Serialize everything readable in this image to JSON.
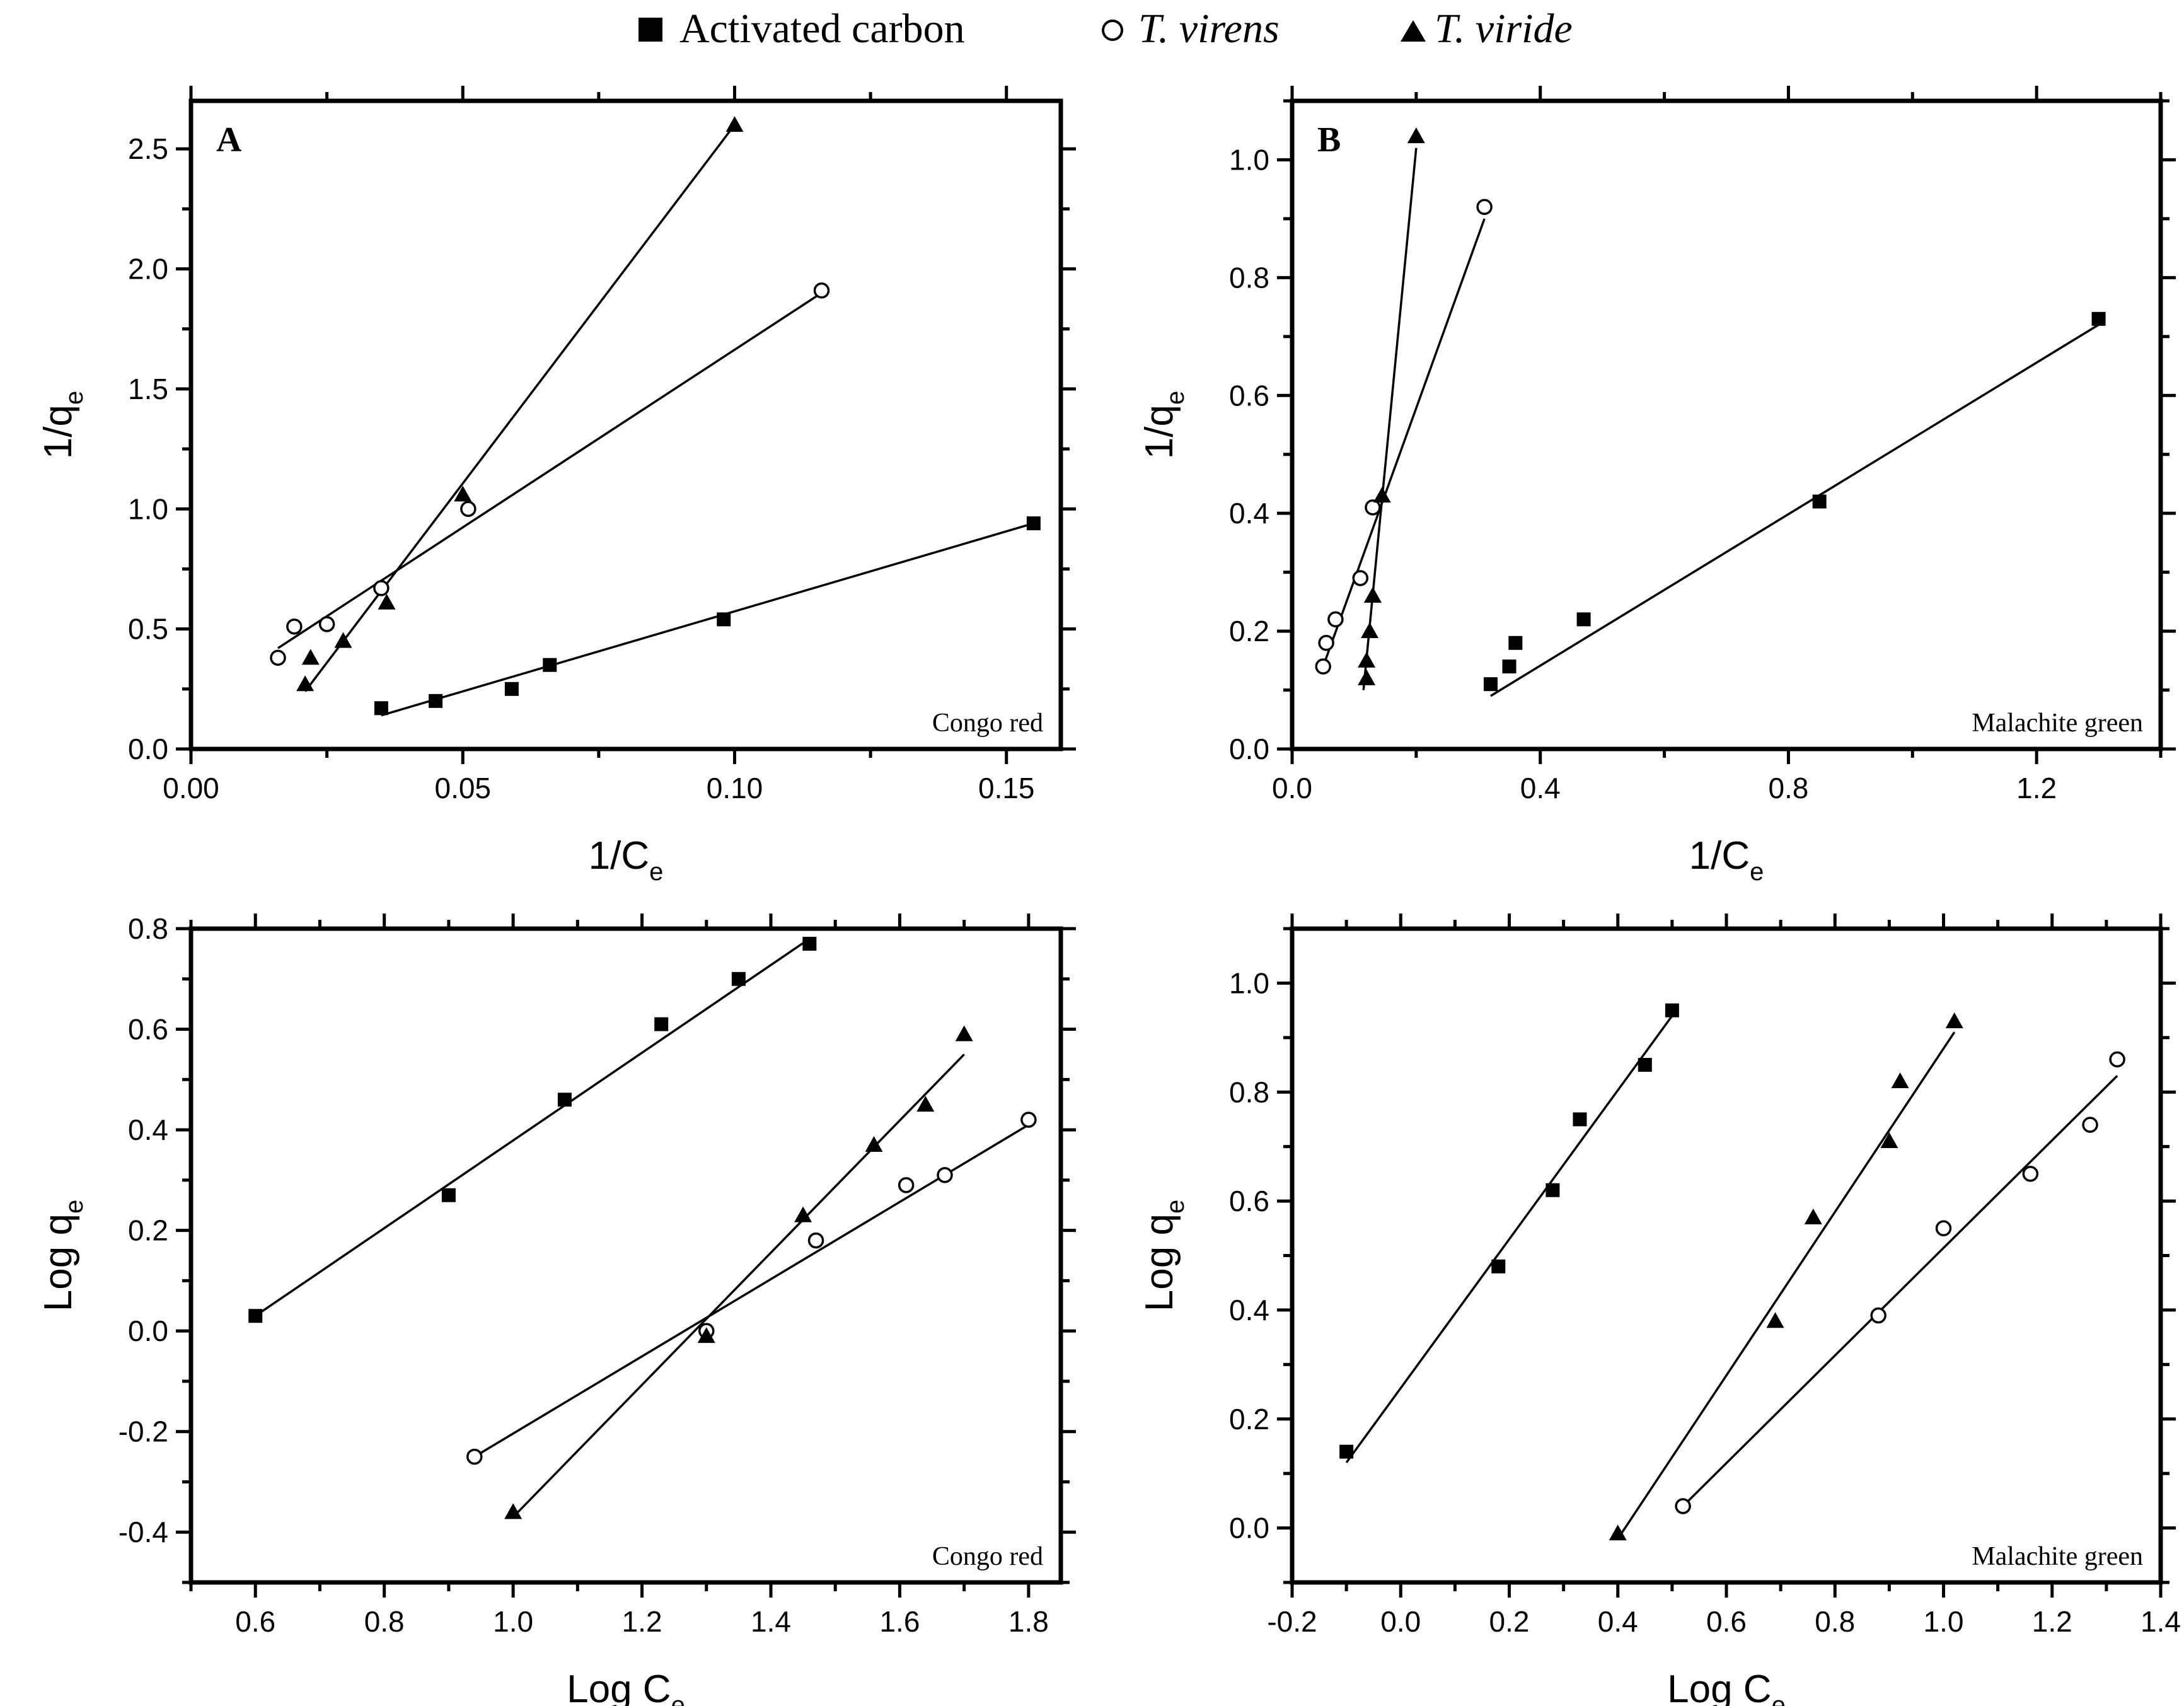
{
  "legend": {
    "entries": [
      {
        "name": "Activated carbon",
        "marker": "square",
        "italic": false
      },
      {
        "name": "T. virens",
        "marker": "circle",
        "italic": true
      },
      {
        "name": "T. viride",
        "marker": "triangle",
        "italic": true
      }
    ]
  },
  "colors": {
    "ink": "#000000",
    "background": "#ffffff"
  },
  "chart_data": [
    {
      "id": "A",
      "type": "scatter",
      "panel_label": "A",
      "annotation": "Congo red",
      "xlabel": {
        "main": "1/C",
        "sub": "e"
      },
      "ylabel": {
        "main": "1/q",
        "sub": "e"
      },
      "xlim": [
        0.0,
        0.16
      ],
      "ylim": [
        0.0,
        2.7
      ],
      "xticks": [
        0.0,
        0.05,
        0.1,
        0.15
      ],
      "xtick_labels": [
        "0.00",
        "0.05",
        "0.10",
        "0.15"
      ],
      "yticks": [
        0.0,
        0.5,
        1.0,
        1.5,
        2.0,
        2.5
      ],
      "ytick_labels": [
        "0.0",
        "0.5",
        "1.0",
        "1.5",
        "2.0",
        "2.5"
      ],
      "series": [
        {
          "name": "Activated carbon",
          "marker": "square",
          "x": [
            0.035,
            0.045,
            0.059,
            0.066,
            0.098,
            0.155
          ],
          "y": [
            0.17,
            0.2,
            0.25,
            0.35,
            0.54,
            0.94
          ],
          "fit": {
            "x": [
              0.035,
              0.155
            ],
            "y": [
              0.14,
              0.94
            ]
          }
        },
        {
          "name": "T. virens",
          "marker": "circle",
          "x": [
            0.016,
            0.019,
            0.025,
            0.035,
            0.051,
            0.116
          ],
          "y": [
            0.38,
            0.51,
            0.52,
            0.67,
            1.0,
            1.91
          ],
          "fit": {
            "x": [
              0.016,
              0.116
            ],
            "y": [
              0.42,
              1.9
            ]
          }
        },
        {
          "name": "T. viride",
          "marker": "triangle",
          "x": [
            0.021,
            0.022,
            0.028,
            0.036,
            0.05,
            0.1
          ],
          "y": [
            0.27,
            0.38,
            0.45,
            0.61,
            1.06,
            2.6
          ],
          "fit": {
            "x": [
              0.021,
              0.1
            ],
            "y": [
              0.24,
              2.6
            ]
          }
        }
      ]
    },
    {
      "id": "B",
      "type": "scatter",
      "panel_label": "B",
      "annotation": "Malachite green",
      "xlabel": {
        "main": "1/C",
        "sub": "e"
      },
      "ylabel": {
        "main": "1/q",
        "sub": "e"
      },
      "xlim": [
        0.0,
        1.4
      ],
      "ylim": [
        0.0,
        1.1
      ],
      "xticks": [
        0.0,
        0.4,
        0.8,
        1.2
      ],
      "xtick_labels": [
        "0.0",
        "0.4",
        "0.8",
        "1.2"
      ],
      "yticks": [
        0.0,
        0.2,
        0.4,
        0.6,
        0.8,
        1.0
      ],
      "ytick_labels": [
        "0.0",
        "0.2",
        "0.4",
        "0.6",
        "0.8",
        "1.0"
      ],
      "series": [
        {
          "name": "Activated carbon",
          "marker": "square",
          "x": [
            0.32,
            0.35,
            0.36,
            0.47,
            0.85,
            1.3
          ],
          "y": [
            0.11,
            0.14,
            0.18,
            0.22,
            0.42,
            0.73
          ],
          "fit": {
            "x": [
              0.32,
              1.3
            ],
            "y": [
              0.09,
              0.72
            ]
          }
        },
        {
          "name": "T. virens",
          "marker": "circle",
          "x": [
            0.05,
            0.055,
            0.07,
            0.11,
            0.13,
            0.31
          ],
          "y": [
            0.14,
            0.18,
            0.22,
            0.29,
            0.41,
            0.92
          ],
          "fit": {
            "x": [
              0.05,
              0.31
            ],
            "y": [
              0.14,
              0.9
            ]
          }
        },
        {
          "name": "T. viride",
          "marker": "triangle",
          "x": [
            0.12,
            0.12,
            0.125,
            0.13,
            0.13,
            0.145,
            0.2
          ],
          "y": [
            0.12,
            0.15,
            0.2,
            0.26,
            0.26,
            0.43,
            1.04
          ],
          "fit": {
            "x": [
              0.115,
              0.2
            ],
            "y": [
              0.1,
              1.02
            ]
          }
        }
      ]
    },
    {
      "id": "C",
      "type": "scatter",
      "panel_label": "",
      "annotation": "Congo red",
      "xlabel": {
        "main": "Log C",
        "sub": "e"
      },
      "ylabel": {
        "main": "Log q",
        "sub": "e"
      },
      "xlim": [
        0.5,
        1.85
      ],
      "ylim": [
        -0.5,
        0.8
      ],
      "xticks": [
        0.6,
        0.8,
        1.0,
        1.2,
        1.4,
        1.6,
        1.8
      ],
      "xtick_labels": [
        "0.6",
        "0.8",
        "1.0",
        "1.2",
        "1.4",
        "1.6",
        "1.8"
      ],
      "yticks": [
        -0.4,
        -0.2,
        0.0,
        0.2,
        0.4,
        0.6,
        0.8
      ],
      "ytick_labels": [
        "-0.4",
        "-0.2",
        "0.0",
        "0.2",
        "0.4",
        "0.6",
        "0.8"
      ],
      "series": [
        {
          "name": "Activated carbon",
          "marker": "square",
          "x": [
            0.6,
            0.9,
            1.08,
            1.23,
            1.35,
            1.46
          ],
          "y": [
            0.03,
            0.27,
            0.46,
            0.61,
            0.7,
            0.77
          ],
          "fit": {
            "x": [
              0.6,
              1.46
            ],
            "y": [
              0.03,
              0.78
            ]
          }
        },
        {
          "name": "T. virens",
          "marker": "circle",
          "x": [
            0.94,
            1.3,
            1.47,
            1.61,
            1.67,
            1.8
          ],
          "y": [
            -0.25,
            0.0,
            0.18,
            0.29,
            0.31,
            0.42
          ],
          "fit": {
            "x": [
              0.94,
              1.8
            ],
            "y": [
              -0.25,
              0.41
            ]
          }
        },
        {
          "name": "T. viride",
          "marker": "triangle",
          "x": [
            1.0,
            1.3,
            1.45,
            1.56,
            1.64,
            1.7
          ],
          "y": [
            -0.36,
            -0.01,
            0.23,
            0.37,
            0.45,
            0.59
          ],
          "fit": {
            "x": [
              1.0,
              1.7
            ],
            "y": [
              -0.37,
              0.55
            ]
          }
        }
      ]
    },
    {
      "id": "D",
      "type": "scatter",
      "panel_label": "",
      "annotation": "Malachite green",
      "xlabel": {
        "main": "Log C",
        "sub": "e"
      },
      "ylabel": {
        "main": "Log q",
        "sub": "e"
      },
      "xlim": [
        -0.2,
        1.4
      ],
      "ylim": [
        -0.1,
        1.1
      ],
      "xticks": [
        -0.2,
        0.0,
        0.2,
        0.4,
        0.6,
        0.8,
        1.0,
        1.2,
        1.4
      ],
      "xtick_labels": [
        "-0.2",
        "0.0",
        "0.2",
        "0.4",
        "0.6",
        "0.8",
        "1.0",
        "1.2",
        "1.4"
      ],
      "yticks": [
        0.0,
        0.2,
        0.4,
        0.6,
        0.8,
        1.0
      ],
      "ytick_labels": [
        "0.0",
        "0.2",
        "0.4",
        "0.6",
        "0.8",
        "1.0"
      ],
      "series": [
        {
          "name": "Activated carbon",
          "marker": "square",
          "x": [
            -0.1,
            0.18,
            0.28,
            0.33,
            0.45,
            0.5
          ],
          "y": [
            0.14,
            0.48,
            0.62,
            0.75,
            0.85,
            0.95
          ],
          "fit": {
            "x": [
              -0.1,
              0.5
            ],
            "y": [
              0.12,
              0.94
            ]
          }
        },
        {
          "name": "T. virens",
          "marker": "circle",
          "x": [
            0.52,
            0.88,
            1.0,
            1.16,
            1.27,
            1.32
          ],
          "y": [
            0.04,
            0.39,
            0.55,
            0.65,
            0.74,
            0.86
          ],
          "fit": {
            "x": [
              0.52,
              1.32
            ],
            "y": [
              0.04,
              0.83
            ]
          }
        },
        {
          "name": "T. viride",
          "marker": "triangle",
          "x": [
            0.4,
            0.69,
            0.76,
            0.9,
            0.92,
            1.02
          ],
          "y": [
            -0.01,
            0.38,
            0.57,
            0.71,
            0.82,
            0.93
          ],
          "fit": {
            "x": [
              0.4,
              1.02
            ],
            "y": [
              -0.02,
              0.91
            ]
          }
        }
      ]
    }
  ]
}
